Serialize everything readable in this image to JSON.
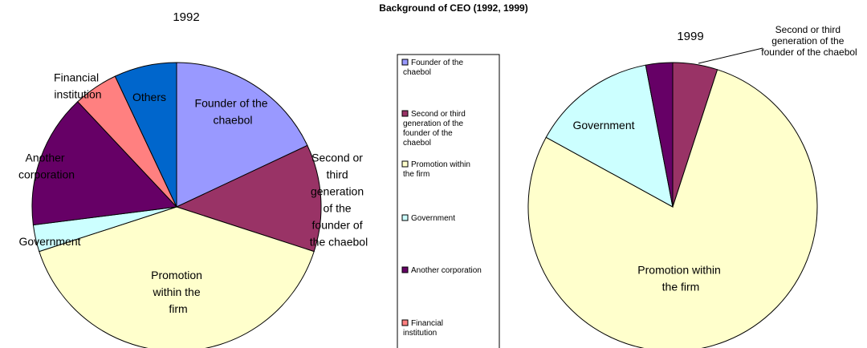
{
  "title": "Background of CEO (1992, 1999)",
  "chart_data": [
    {
      "type": "pie",
      "title": "1992",
      "categories": [
        "Founder of the chaebol",
        "Second or third generation of the founder of the chaebol",
        "Promotion within the firm",
        "Government",
        "Another corporation",
        "Financial institution",
        "Others"
      ],
      "values": [
        18,
        12,
        40,
        3,
        15,
        5,
        7
      ],
      "colors": [
        "#9999ff",
        "#993366",
        "#ffffcc",
        "#ccffff",
        "#660066",
        "#ff8080",
        "#0066cc"
      ],
      "legend": "center"
    },
    {
      "type": "pie",
      "title": "1999",
      "categories": [
        "Second or third generation of the founder of the chaebol",
        "Promotion within the firm",
        "Government",
        null
      ],
      "values": [
        5,
        78,
        14,
        3
      ],
      "colors": [
        "#993366",
        "#ffffcc",
        "#ccffff",
        "#660066"
      ]
    }
  ]
}
